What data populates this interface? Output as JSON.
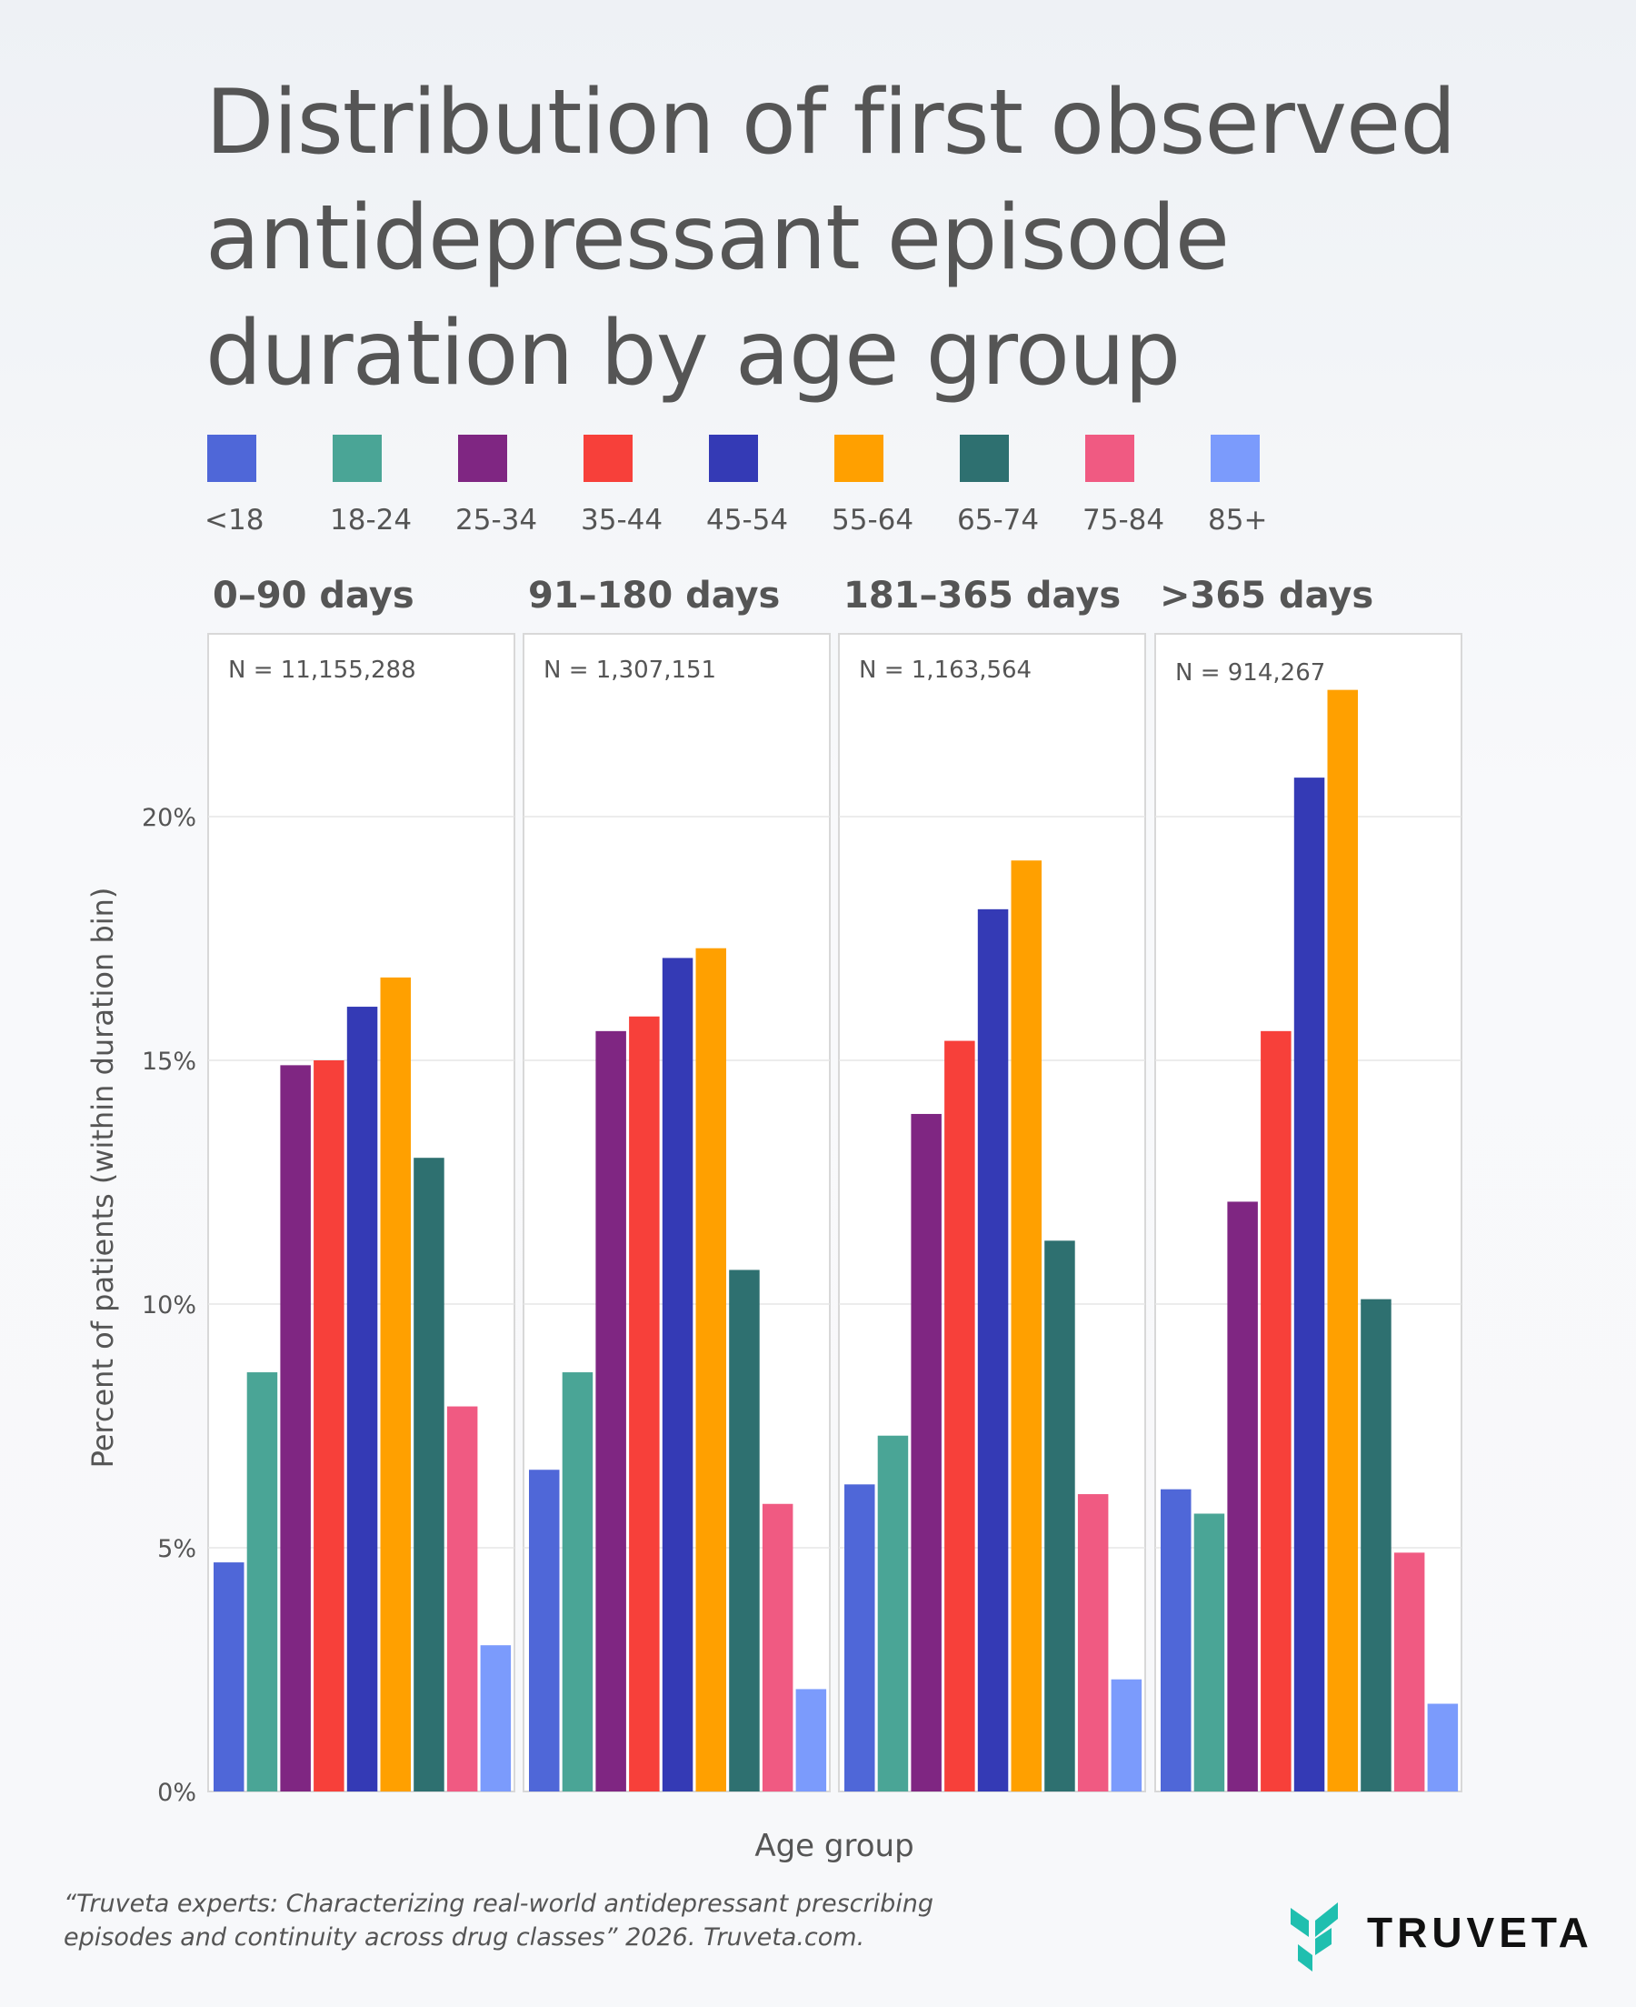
{
  "title": "Distribution of first observed antidepressant episode duration by age group",
  "footer": "“Truveta experts: Characterizing real-world antidepressant prescribing episodes and continuity across drug classes” 2026. Truveta.com.",
  "logo_text": "TRUVETA",
  "chart_data": {
    "type": "bar",
    "title": "Distribution of first observed antidepressant episode duration by age group",
    "xlabel": "Age group",
    "ylabel": "Percent of patients (within duration bin)",
    "ylim": [
      0,
      23.75
    ],
    "yticks": [
      0,
      5,
      10,
      15,
      20
    ],
    "ytick_labels": [
      "0%",
      "5%",
      "10%",
      "15%",
      "20%"
    ],
    "grid": true,
    "legend_position": "top",
    "categories": [
      "<18",
      "18-24",
      "25-34",
      "35-44",
      "45-54",
      "55-64",
      "65-74",
      "75-84",
      "85+"
    ],
    "colors": [
      "#4f67d8",
      "#4aa596",
      "#7f2682",
      "#f7403a",
      "#343ab5",
      "#ffa000",
      "#2e7070",
      "#f05a82",
      "#7b9bfc"
    ],
    "facets": [
      {
        "title": "0–90 days",
        "n_label": "N = 11,155,288",
        "values": [
          4.7,
          8.6,
          14.9,
          15.0,
          16.1,
          16.7,
          13.0,
          7.9,
          3.0
        ]
      },
      {
        "title": "91–180 days",
        "n_label": "N = 1,307,151",
        "values": [
          6.6,
          8.6,
          15.6,
          15.9,
          17.1,
          17.3,
          10.7,
          5.9,
          2.1
        ]
      },
      {
        "title": "181–365 days",
        "n_label": "N = 1,163,564",
        "values": [
          6.3,
          7.3,
          13.9,
          15.4,
          18.1,
          19.1,
          11.3,
          6.1,
          2.3
        ]
      },
      {
        "title": ">365 days",
        "n_label": "N = 914,267",
        "values": [
          6.2,
          5.7,
          12.1,
          15.6,
          20.8,
          22.6,
          10.1,
          4.9,
          1.8
        ]
      }
    ]
  }
}
